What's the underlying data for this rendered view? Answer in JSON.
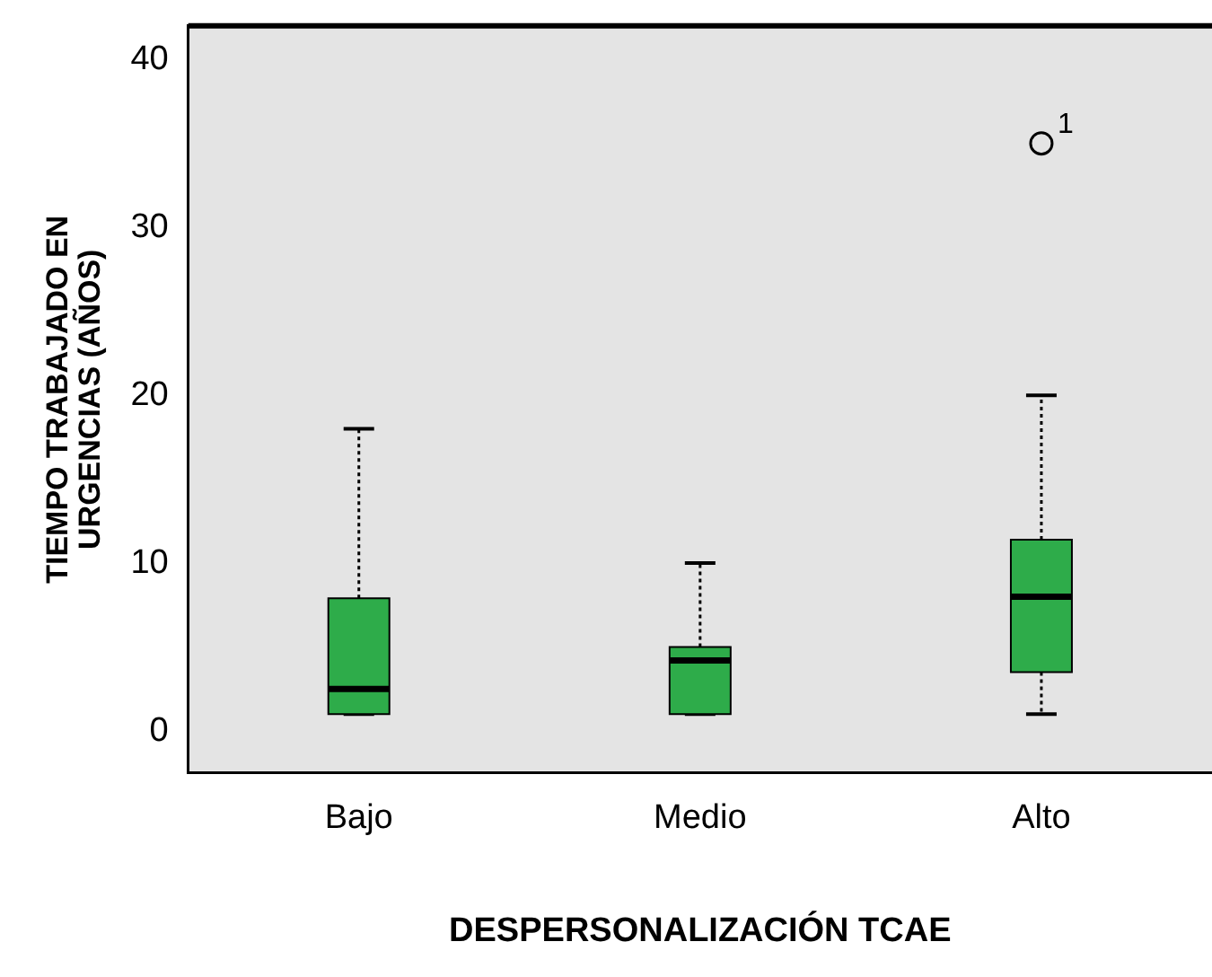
{
  "chart_data": {
    "type": "box",
    "xlabel": "DESPERSONALIZACIÓN TCAE",
    "ylabel": "TIEMPO TRABAJADO EN URGENCIAS (AÑOS)",
    "categories": [
      "Bajo",
      "Medio",
      "Alto"
    ],
    "color": "#2eac4a",
    "boxes": [
      {
        "low": 1,
        "q1": 1,
        "median": 2.5,
        "q3": 7.9,
        "high": 18
      },
      {
        "low": 1,
        "q1": 1,
        "median": 4.2,
        "q3": 5,
        "high": 10
      },
      {
        "low": 1,
        "q1": 3.5,
        "median": 8,
        "q3": 11.4,
        "high": 20,
        "outliers": [
          35
        ]
      }
    ],
    "ylim": [
      -2.5,
      42
    ],
    "yticks": [
      0,
      10,
      20,
      30,
      40
    ],
    "annotations": [
      "1"
    ],
    "grid": false,
    "legend": false
  }
}
